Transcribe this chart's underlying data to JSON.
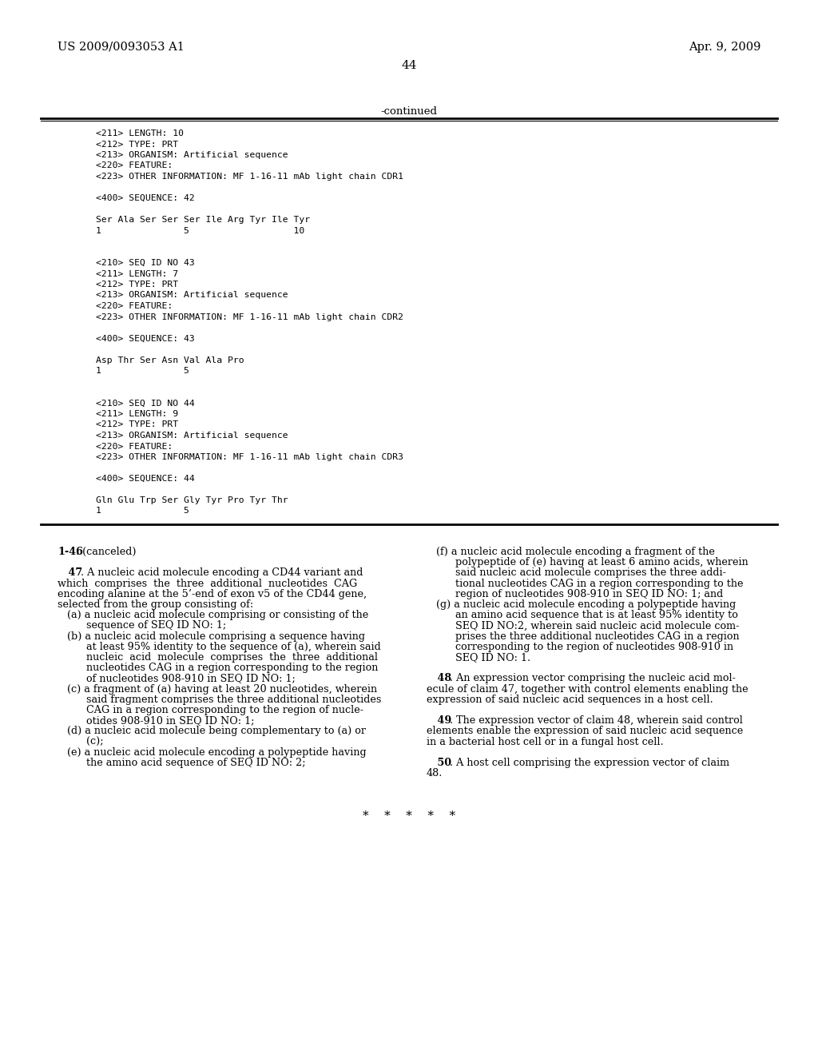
{
  "bg_color": "#ffffff",
  "header_left": "US 2009/0093053 A1",
  "header_right": "Apr. 9, 2009",
  "page_number": "44",
  "continued_label": "-continued",
  "monospace_lines": [
    "<211> LENGTH: 10",
    "<212> TYPE: PRT",
    "<213> ORGANISM: Artificial sequence",
    "<220> FEATURE:",
    "<223> OTHER INFORMATION: MF 1-16-11 mAb light chain CDR1",
    "",
    "<400> SEQUENCE: 42",
    "",
    "Ser Ala Ser Ser Ser Ile Arg Tyr Ile Tyr",
    "1               5                   10",
    "",
    "",
    "<210> SEQ ID NO 43",
    "<211> LENGTH: 7",
    "<212> TYPE: PRT",
    "<213> ORGANISM: Artificial sequence",
    "<220> FEATURE:",
    "<223> OTHER INFORMATION: MF 1-16-11 mAb light chain CDR2",
    "",
    "<400> SEQUENCE: 43",
    "",
    "Asp Thr Ser Asn Val Ala Pro",
    "1               5",
    "",
    "",
    "<210> SEQ ID NO 44",
    "<211> LENGTH: 9",
    "<212> TYPE: PRT",
    "<213> ORGANISM: Artificial sequence",
    "<220> FEATURE:",
    "<223> OTHER INFORMATION: MF 1-16-11 mAb light chain CDR3",
    "",
    "<400> SEQUENCE: 44",
    "",
    "Gln Glu Trp Ser Gly Tyr Pro Tyr Thr",
    "1               5"
  ],
  "left_col_lines": [
    [
      "bold",
      "1-46",
      ". (canceled)"
    ],
    [
      "normal",
      "",
      ""
    ],
    [
      "bold",
      "   47",
      ". A nucleic acid molecule encoding a CD44 variant and"
    ],
    [
      "normal",
      "",
      "which  comprises  the  three  additional  nucleotides  CAG"
    ],
    [
      "normal",
      "",
      "encoding alanine at the 5’-end of exon v5 of the CD44 gene,"
    ],
    [
      "normal",
      "",
      "selected from the group consisting of:"
    ],
    [
      "normal",
      "",
      "   (a) a nucleic acid molecule comprising or consisting of the"
    ],
    [
      "normal",
      "",
      "         sequence of SEQ ID NO: 1;"
    ],
    [
      "normal",
      "",
      "   (b) a nucleic acid molecule comprising a sequence having"
    ],
    [
      "normal",
      "",
      "         at least 95% identity to the sequence of (a), wherein said"
    ],
    [
      "normal",
      "",
      "         nucleic  acid  molecule  comprises  the  three  additional"
    ],
    [
      "normal",
      "",
      "         nucleotides CAG in a region corresponding to the region"
    ],
    [
      "normal",
      "",
      "         of nucleotides 908-910 in SEQ ID NO: 1;"
    ],
    [
      "normal",
      "",
      "   (c) a fragment of (a) having at least 20 nucleotides, wherein"
    ],
    [
      "normal",
      "",
      "         said fragment comprises the three additional nucleotides"
    ],
    [
      "normal",
      "",
      "         CAG in a region corresponding to the region of nucle-"
    ],
    [
      "normal",
      "",
      "         otides 908-910 in SEQ ID NO: 1;"
    ],
    [
      "normal",
      "",
      "   (d) a nucleic acid molecule being complementary to (a) or"
    ],
    [
      "normal",
      "",
      "         (c);"
    ],
    [
      "normal",
      "",
      "   (e) a nucleic acid molecule encoding a polypeptide having"
    ],
    [
      "normal",
      "",
      "         the amino acid sequence of SEQ ID NO: 2;"
    ]
  ],
  "right_col_lines": [
    [
      "normal",
      "",
      "   (f) a nucleic acid molecule encoding a fragment of the"
    ],
    [
      "normal",
      "",
      "         polypeptide of (e) having at least 6 amino acids, wherein"
    ],
    [
      "normal",
      "",
      "         said nucleic acid molecule comprises the three addi-"
    ],
    [
      "normal",
      "",
      "         tional nucleotides CAG in a region corresponding to the"
    ],
    [
      "normal",
      "",
      "         region of nucleotides 908-910 in SEQ ID NO: 1; and"
    ],
    [
      "normal",
      "",
      "   (g) a nucleic acid molecule encoding a polypeptide having"
    ],
    [
      "normal",
      "",
      "         an amino acid sequence that is at least 95% identity to"
    ],
    [
      "normal",
      "",
      "         SEQ ID NO:2, wherein said nucleic acid molecule com-"
    ],
    [
      "normal",
      "",
      "         prises the three additional nucleotides CAG in a region"
    ],
    [
      "normal",
      "",
      "         corresponding to the region of nucleotides 908-910 in"
    ],
    [
      "normal",
      "",
      "         SEQ ID NO: 1."
    ],
    [
      "normal",
      "",
      ""
    ],
    [
      "bold",
      "   48",
      ". An expression vector comprising the nucleic acid mol-"
    ],
    [
      "normal",
      "",
      "ecule of claim ​47, together with control elements enabling the"
    ],
    [
      "normal",
      "",
      "expression of said nucleic acid sequences in a host cell."
    ],
    [
      "normal",
      "",
      ""
    ],
    [
      "bold",
      "   49",
      ". The expression vector of claim ​48, wherein said control"
    ],
    [
      "normal",
      "",
      "elements enable the expression of said nucleic acid sequence"
    ],
    [
      "normal",
      "",
      "in a bacterial host cell or in a fungal host cell."
    ],
    [
      "normal",
      "",
      ""
    ],
    [
      "bold",
      "   50",
      ". A host cell comprising the expression vector of claim"
    ],
    [
      "normal",
      "",
      "48."
    ]
  ],
  "asterisks": "*    *    *    *    *"
}
